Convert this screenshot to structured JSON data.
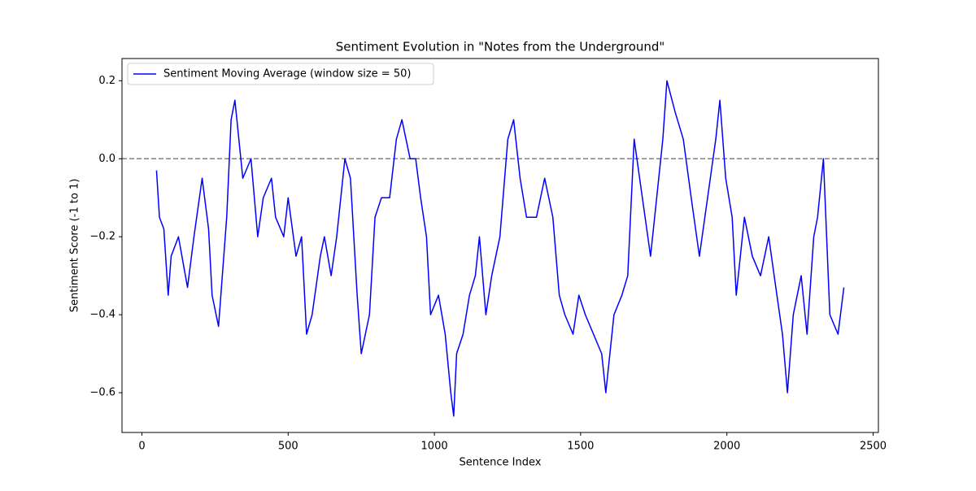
{
  "chart_data": {
    "type": "line",
    "title": "Sentiment Evolution in \"Notes from the Underground\"",
    "x_label": "Sentence Index",
    "y_label": "Sentiment Score (-1 to 1)",
    "x": [
      50,
      60,
      75,
      90,
      100,
      125,
      156,
      178,
      206,
      228,
      240,
      262,
      290,
      305,
      318,
      345,
      373,
      396,
      415,
      443,
      457,
      485,
      500,
      527,
      546,
      563,
      582,
      610,
      624,
      647,
      666,
      694,
      713,
      736,
      750,
      778,
      797,
      819,
      847,
      870,
      889,
      917,
      936,
      953,
      973,
      987,
      1014,
      1037,
      1056,
      1066,
      1076,
      1098,
      1120,
      1140,
      1154,
      1176,
      1196,
      1224,
      1251,
      1271,
      1293,
      1315,
      1349,
      1377,
      1405,
      1427,
      1446,
      1474,
      1494,
      1516,
      1544,
      1572,
      1586,
      1614,
      1641,
      1661,
      1683,
      1711,
      1739,
      1767,
      1781,
      1795,
      1823,
      1851,
      1878,
      1906,
      1934,
      1962,
      1976,
      1996,
      2018,
      2032,
      2060,
      2087,
      2115,
      2143,
      2171,
      2190,
      2207,
      2227,
      2254,
      2274,
      2297,
      2310,
      2330,
      2352,
      2380,
      2400
    ],
    "series": [
      {
        "name": "Sentiment Moving Average (window size = 50)",
        "color": "#0000ff",
        "values": [
          -0.03,
          -0.15,
          -0.18,
          -0.35,
          -0.25,
          -0.2,
          -0.33,
          -0.2,
          -0.05,
          -0.18,
          -0.35,
          -0.43,
          -0.15,
          0.1,
          0.15,
          -0.05,
          0.0,
          -0.2,
          -0.1,
          -0.05,
          -0.15,
          -0.2,
          -0.1,
          -0.25,
          -0.2,
          -0.45,
          -0.4,
          -0.25,
          -0.2,
          -0.3,
          -0.2,
          0.0,
          -0.05,
          -0.35,
          -0.5,
          -0.4,
          -0.15,
          -0.1,
          -0.1,
          0.05,
          0.1,
          0.0,
          0.0,
          -0.1,
          -0.2,
          -0.4,
          -0.35,
          -0.45,
          -0.6,
          -0.66,
          -0.5,
          -0.45,
          -0.35,
          -0.3,
          -0.2,
          -0.4,
          -0.3,
          -0.2,
          0.05,
          0.1,
          -0.05,
          -0.15,
          -0.15,
          -0.05,
          -0.15,
          -0.35,
          -0.4,
          -0.45,
          -0.35,
          -0.4,
          -0.45,
          -0.5,
          -0.6,
          -0.4,
          -0.35,
          -0.3,
          0.05,
          -0.1,
          -0.25,
          -0.05,
          0.05,
          0.2,
          0.12,
          0.05,
          -0.1,
          -0.25,
          -0.1,
          0.05,
          0.15,
          -0.05,
          -0.15,
          -0.35,
          -0.15,
          -0.25,
          -0.3,
          -0.2,
          -0.35,
          -0.45,
          -0.6,
          -0.4,
          -0.3,
          -0.45,
          -0.2,
          -0.15,
          0.0,
          -0.4,
          -0.45,
          -0.33
        ]
      }
    ],
    "xlim": [
      -68,
      2518
    ],
    "ylim": [
      -0.702,
      0.257
    ],
    "xticks": [
      0,
      500,
      1000,
      1500,
      2000,
      2500
    ],
    "yticks": [
      {
        "value": -0.6,
        "label": "−0.6"
      },
      {
        "value": -0.4,
        "label": "−0.4"
      },
      {
        "value": -0.2,
        "label": "−0.2"
      },
      {
        "value": 0,
        "label": "0.0"
      },
      0.2
    ],
    "reference_line": {
      "value": 0,
      "color": "#808080",
      "style": "dashed"
    },
    "legend": "upper left",
    "grid": false
  }
}
